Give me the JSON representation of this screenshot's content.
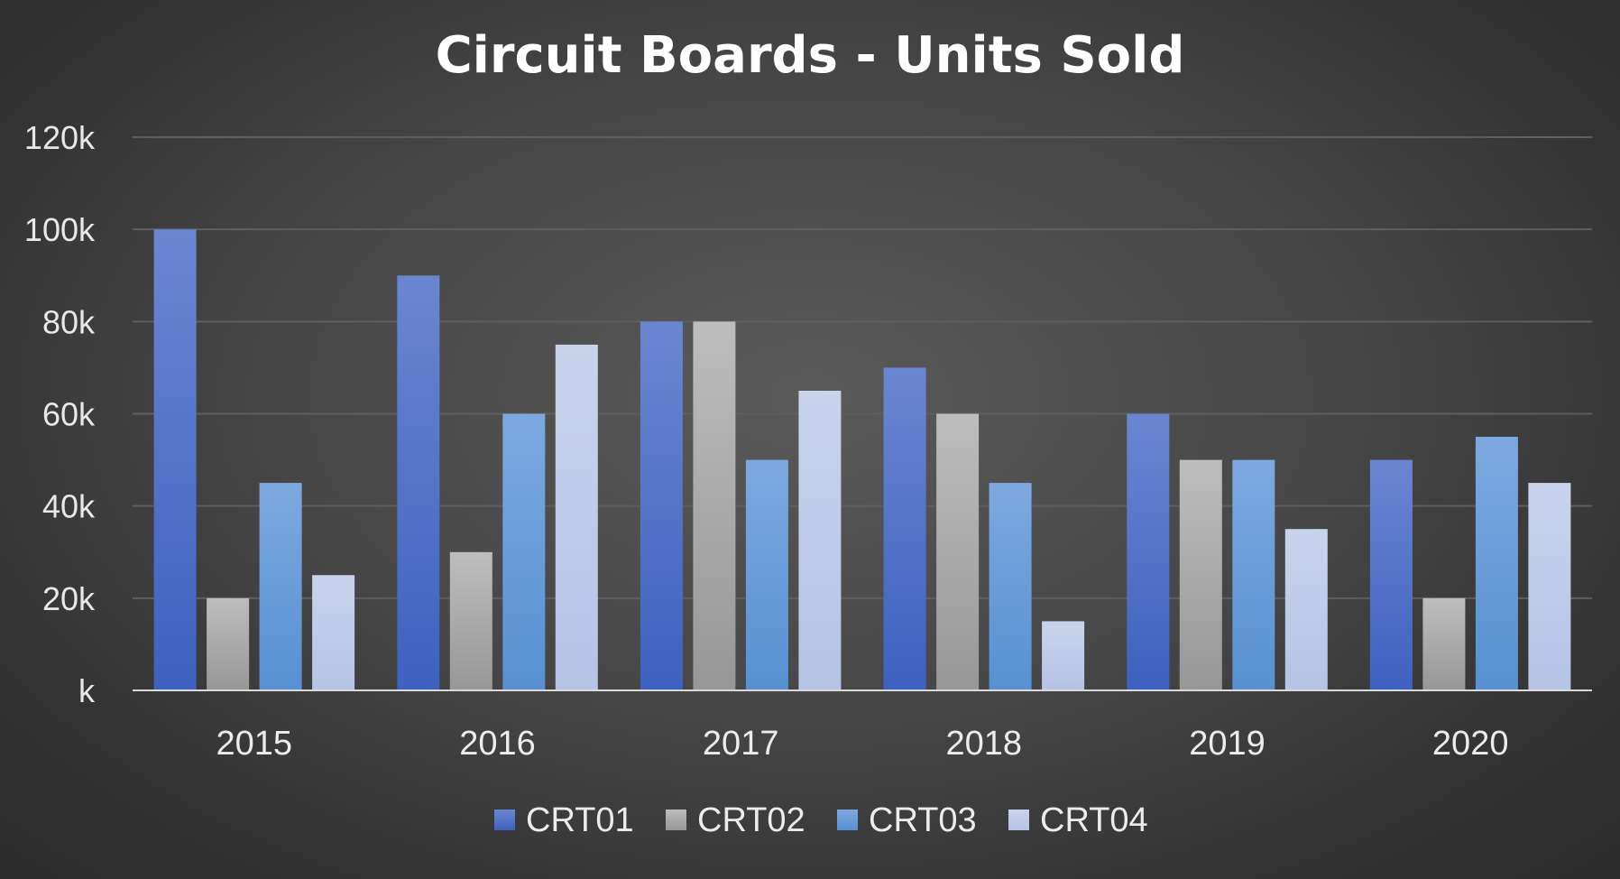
{
  "chart_data": {
    "type": "bar",
    "title": "Circuit Boards - Units Sold",
    "xlabel": "",
    "ylabel": "",
    "categories": [
      "2015",
      "2016",
      "2017",
      "2018",
      "2019",
      "2020"
    ],
    "series": [
      {
        "name": "CRT01",
        "values": [
          100000,
          90000,
          80000,
          70000,
          60000,
          50000
        ]
      },
      {
        "name": "CRT02",
        "values": [
          20000,
          30000,
          80000,
          60000,
          50000,
          20000
        ]
      },
      {
        "name": "CRT03",
        "values": [
          45000,
          60000,
          50000,
          45000,
          50000,
          55000
        ]
      },
      {
        "name": "CRT04",
        "values": [
          25000,
          75000,
          65000,
          15000,
          35000,
          45000
        ]
      }
    ],
    "ylim": [
      0,
      120000
    ],
    "yticks": [
      0,
      20000,
      40000,
      60000,
      80000,
      100000,
      120000
    ],
    "ytick_labels": [
      "k",
      "20k",
      "40k",
      "60k",
      "80k",
      "100k",
      "120k"
    ],
    "grid": true,
    "legend_position": "bottom",
    "colors": {
      "CRT01": [
        "#6b86d1",
        "#3e61c0"
      ],
      "CRT02": [
        "#bdbdbd",
        "#979797"
      ],
      "CRT03": [
        "#7da9df",
        "#5790d2"
      ],
      "CRT04": [
        "#c9d3ec",
        "#b5c3e6"
      ]
    },
    "background": "#404040",
    "text_color": "#ffffff"
  }
}
